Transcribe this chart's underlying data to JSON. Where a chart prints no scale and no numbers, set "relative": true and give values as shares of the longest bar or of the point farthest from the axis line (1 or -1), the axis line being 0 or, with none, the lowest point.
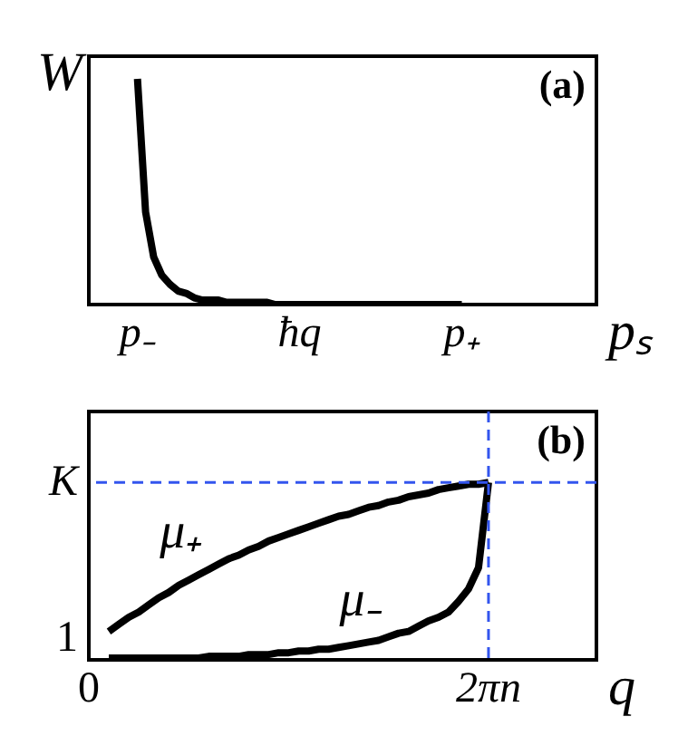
{
  "chart_data": [
    {
      "type": "line",
      "ylabel": "W",
      "xlabel": "pₛ",
      "relative": true,
      "categories": [
        "p₋",
        null,
        null,
        null,
        null,
        null,
        null,
        null,
        null,
        null,
        null,
        null,
        null,
        null,
        null,
        null,
        null,
        null,
        null,
        null,
        "ħq",
        null,
        null,
        null,
        null,
        null,
        null,
        null,
        null,
        null,
        null,
        null,
        null,
        null,
        null,
        null,
        null,
        null,
        null,
        null,
        "p₊"
      ],
      "annotations": [
        "(a)"
      ],
      "series": [
        {
          "color": "#000000",
          "values": [
            1,
            0.41,
            0.21,
            0.13,
            0.09,
            0.06,
            0.05,
            0.03,
            0.02,
            0.02,
            0.02,
            0.01,
            0.01,
            0.01,
            0.01,
            0.01,
            0.01,
            0,
            0,
            0,
            0,
            0,
            0,
            0,
            0,
            0,
            0,
            0,
            0,
            0,
            0,
            0,
            0,
            0,
            0,
            0,
            0,
            0,
            0,
            0,
            0
          ]
        }
      ]
    },
    {
      "type": "line",
      "xlabel": "q",
      "relative": true,
      "categories": [
        "0",
        null,
        null,
        null,
        null,
        null,
        null,
        null,
        null,
        null,
        null,
        null,
        null,
        null,
        null,
        null,
        null,
        null,
        null,
        null,
        null,
        null,
        null,
        null,
        null,
        null,
        null,
        null,
        null,
        null,
        null,
        null,
        null,
        null,
        null,
        null,
        null,
        null,
        null,
        null,
        "2πn"
      ],
      "annotations": [
        "(b)",
        "1"
      ],
      "series": [
        {
          "name": "μ₊",
          "color": "#000000",
          "values": [
            null,
            null,
            0.16,
            0.2,
            0.24,
            0.27,
            0.31,
            0.35,
            0.38,
            0.42,
            0.45,
            0.48,
            0.51,
            0.54,
            0.57,
            0.59,
            0.62,
            0.64,
            0.67,
            0.69,
            0.71,
            0.73,
            0.75,
            0.77,
            0.79,
            0.81,
            0.82,
            0.84,
            0.86,
            0.87,
            0.89,
            0.9,
            0.92,
            0.93,
            0.94,
            0.96,
            0.97,
            0.98,
            0.99,
            0.99,
            1.0
          ]
        },
        {
          "name": "μ₋",
          "color": "#000000",
          "values": [
            null,
            null,
            0.01,
            0.01,
            0.01,
            0.01,
            0.01,
            0.01,
            0.01,
            0.01,
            0.01,
            0.01,
            0.02,
            0.02,
            0.02,
            0.02,
            0.03,
            0.03,
            0.03,
            0.04,
            0.04,
            0.05,
            0.05,
            0.06,
            0.06,
            0.07,
            0.08,
            0.09,
            0.1,
            0.11,
            0.13,
            0.15,
            0.16,
            0.19,
            0.22,
            0.24,
            0.27,
            0.33,
            0.4,
            0.52,
            1.0
          ]
        }
      ],
      "ref_lines": [
        {
          "axis": "x",
          "value": "2πn",
          "color": "#3355ee",
          "line_style": "dashed"
        },
        {
          "axis": "y",
          "value": 1,
          "label": "K",
          "color": "#3355ee",
          "line_style": "dashed"
        }
      ]
    }
  ]
}
